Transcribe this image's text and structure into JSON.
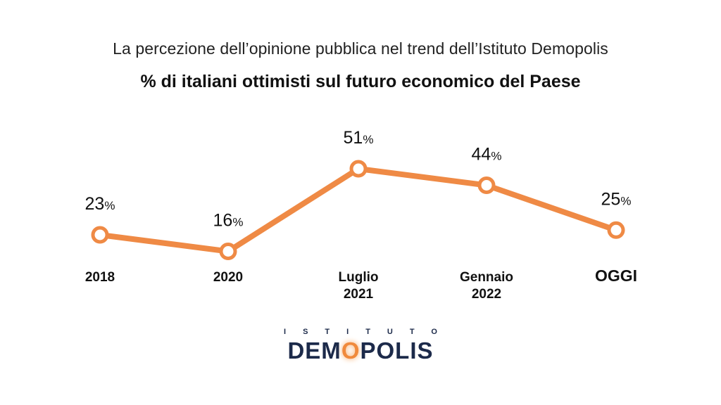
{
  "header": {
    "subtitle": "La percezione dell’opinione pubblica nel trend dell’Istituto Demopolis",
    "title": "% di italiani ottimisti sul futuro economico del Paese"
  },
  "chart_data": {
    "type": "line",
    "categories": [
      "2018",
      "2020",
      "Luglio 2021",
      "Gennaio 2022",
      "OGGI"
    ],
    "category_lines": [
      [
        "2018"
      ],
      [
        "2020"
      ],
      [
        "Luglio",
        "2021"
      ],
      [
        "Gennaio",
        "2022"
      ],
      [
        "OGGI"
      ]
    ],
    "values": [
      23,
      16,
      51,
      44,
      25
    ],
    "value_labels": [
      "23",
      "16",
      "51",
      "44",
      "25"
    ],
    "unit": "%",
    "color": "#ef8a45"
  },
  "logo": {
    "top_text": "ISTITUTO",
    "main_text": "DEMOPOLIS"
  }
}
